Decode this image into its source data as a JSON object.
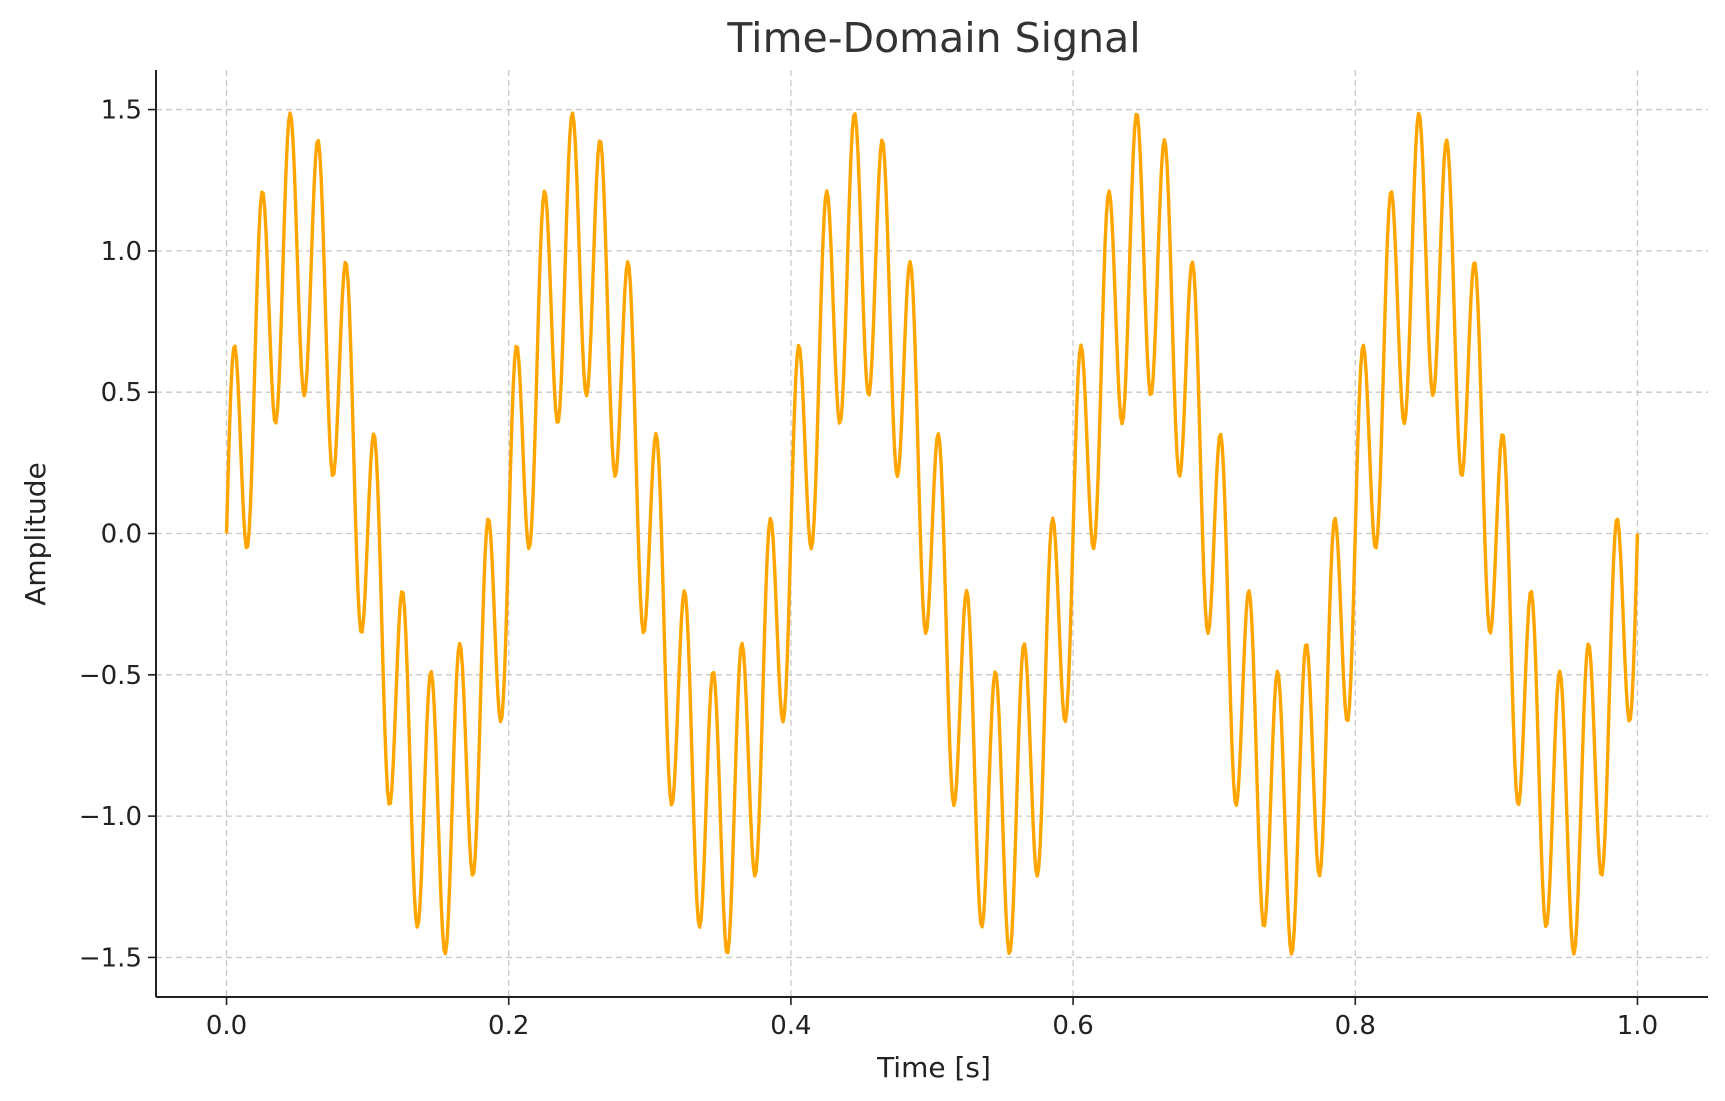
{
  "chart_data": {
    "type": "line",
    "title": "Time-Domain Signal",
    "xlabel": "Time [s]",
    "ylabel": "Amplitude",
    "xlim": [
      -0.05,
      1.05
    ],
    "ylim": [
      -1.64,
      1.64
    ],
    "xticks": [
      0.0,
      0.2,
      0.4,
      0.6,
      0.8,
      1.0
    ],
    "xtick_labels": [
      "0.0",
      "0.2",
      "0.4",
      "0.6",
      "0.8",
      "1.0"
    ],
    "yticks": [
      -1.5,
      -1.0,
      -0.5,
      0.0,
      0.5,
      1.0,
      1.5
    ],
    "ytick_labels": [
      "−1.5",
      "−1.0",
      "−0.5",
      "0.0",
      "0.5",
      "1.0",
      "1.5"
    ],
    "grid": true,
    "legend": "none",
    "series": [
      {
        "color": "#FFA500",
        "formula": "y = sin(2π·5·t) + 0.5·sin(2π·50·t)",
        "x_range": [
          0.0,
          1.0
        ],
        "samples": 1000
      }
    ]
  }
}
